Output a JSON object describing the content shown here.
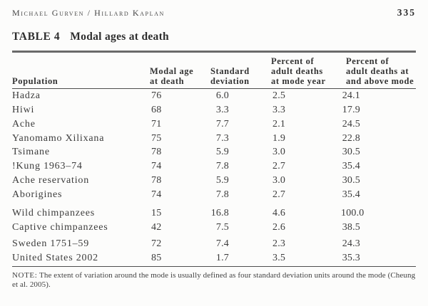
{
  "header": {
    "authors": "Michael Gurven / Hillard Kaplan",
    "page_number": "335"
  },
  "table": {
    "label": "TABLE 4",
    "title": "Modal ages at death",
    "columns": [
      "Population",
      "Modal age\nat death",
      "Standard\ndeviation",
      "Percent of\nadult deaths\nat mode year",
      "Percent of\nadult deaths at\nand above mode"
    ],
    "groups": [
      {
        "rows": [
          {
            "population": "Hadza",
            "modal_age": "76",
            "std_dev": "6.0",
            "pct_at_mode": "2.5",
            "pct_above_mode": "24.1"
          },
          {
            "population": "Hiwi",
            "modal_age": "68",
            "std_dev": "3.3",
            "pct_at_mode": "3.3",
            "pct_above_mode": "17.9"
          },
          {
            "population": "Ache",
            "modal_age": "71",
            "std_dev": "7.7",
            "pct_at_mode": "2.1",
            "pct_above_mode": "24.5"
          },
          {
            "population": "Yanomamo Xilixana",
            "modal_age": "75",
            "std_dev": "7.3",
            "pct_at_mode": "1.9",
            "pct_above_mode": "22.8"
          },
          {
            "population": "Tsimane",
            "modal_age": "78",
            "std_dev": "5.9",
            "pct_at_mode": "3.0",
            "pct_above_mode": "30.5"
          },
          {
            "population": "!Kung 1963–74",
            "modal_age": "74",
            "std_dev": "7.8",
            "pct_at_mode": "2.7",
            "pct_above_mode": "35.4"
          },
          {
            "population": "Ache reservation",
            "modal_age": "78",
            "std_dev": "5.9",
            "pct_at_mode": "3.0",
            "pct_above_mode": "30.5"
          },
          {
            "population": "Aborigines",
            "modal_age": "74",
            "std_dev": "7.8",
            "pct_at_mode": "2.7",
            "pct_above_mode": "35.4"
          }
        ]
      },
      {
        "rows": [
          {
            "population": "Wild chimpanzees",
            "modal_age": "15",
            "std_dev": "16.8",
            "pct_at_mode": "4.6",
            "pct_above_mode": "100.0"
          },
          {
            "population": "Captive chimpanzees",
            "modal_age": "42",
            "std_dev": "7.5",
            "pct_at_mode": "2.6",
            "pct_above_mode": "38.5"
          }
        ]
      },
      {
        "rows": [
          {
            "population": "Sweden 1751–59",
            "modal_age": "72",
            "std_dev": "7.4",
            "pct_at_mode": "2.3",
            "pct_above_mode": "24.3"
          },
          {
            "population": "United States 2002",
            "modal_age": "85",
            "std_dev": "1.7",
            "pct_at_mode": "3.5",
            "pct_above_mode": "35.3"
          }
        ]
      }
    ]
  },
  "note": {
    "label": "NOTE:",
    "text": "The extent of variation around the mode is usually defined as four standard deviation units around the mode (Cheung et al. 2005)."
  }
}
